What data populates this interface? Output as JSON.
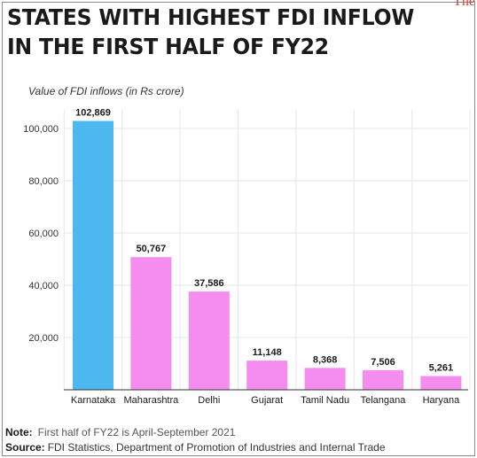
{
  "title": {
    "line1": "STATES WITH HIGHEST FDI INFLOW",
    "line2": "IN THE FIRST HALF OF FY22"
  },
  "brand_fragment": "The",
  "chart_data": {
    "type": "bar",
    "ylabel": "Value of FDI inflows (in Rs crore)",
    "categories": [
      "Karnataka",
      "Maharashtra",
      "Delhi",
      "Gujarat",
      "Tamil Nadu",
      "Telangana",
      "Haryana"
    ],
    "values": [
      102869,
      50767,
      37586,
      11148,
      8368,
      7506,
      5261
    ],
    "value_labels": [
      "102,869",
      "50,767",
      "37,586",
      "11,148",
      "8,368",
      "7,506",
      "5,261"
    ],
    "yticks": [
      20000,
      40000,
      60000,
      80000,
      100000
    ],
    "ytick_labels": [
      "20,000",
      "40,000",
      "60,000",
      "80,000",
      "100,000"
    ],
    "ylim": [
      0,
      110000
    ],
    "grid": true,
    "highlight_index": 0,
    "colors": {
      "highlight": "#4db8f0",
      "bar": "#f58cf0",
      "grid": "#e6e6e6",
      "axis": "#333333"
    }
  },
  "note": {
    "label": "Note:",
    "text": "First half of FY22 is April-September 2021"
  },
  "source": {
    "label": "Source:",
    "text": "FDI Statistics, Department of Promotion of Industries and Internal Trade"
  }
}
